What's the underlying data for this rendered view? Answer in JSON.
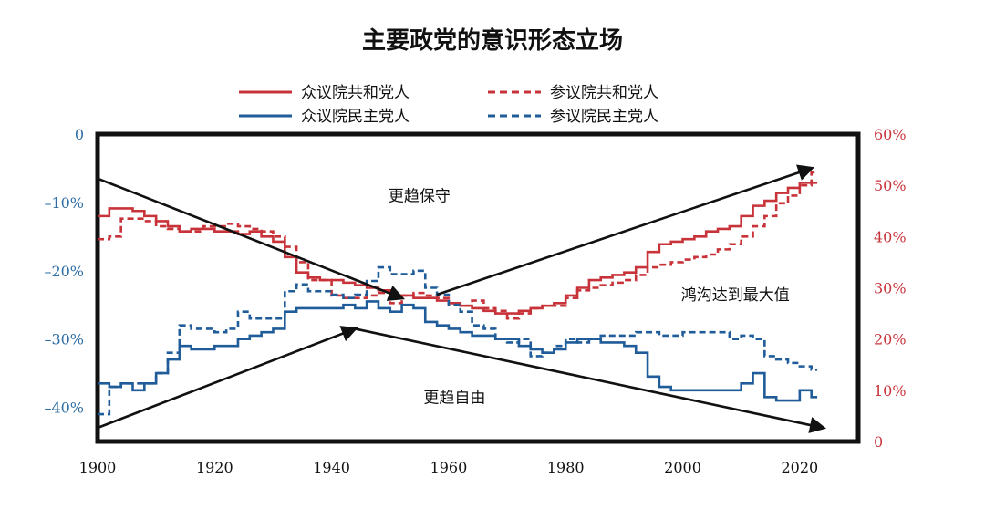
{
  "chart_data": {
    "type": "line",
    "title": "主要政党的意识形态立场",
    "x_ticks": [
      1900,
      1920,
      1940,
      1960,
      1980,
      2000,
      2020
    ],
    "left_axis": {
      "ticks": [
        "0",
        "–10%",
        "–20%",
        "–30%",
        "–40%"
      ],
      "values": [
        0,
        -10,
        -20,
        -30,
        -40
      ],
      "range": [
        -45,
        0
      ]
    },
    "right_axis": {
      "ticks": [
        "60%",
        "50%",
        "40%",
        "30%",
        "20%",
        "10%",
        "0"
      ],
      "values": [
        60,
        50,
        40,
        30,
        20,
        10,
        0
      ],
      "range": [
        0,
        60
      ]
    },
    "legend": {
      "placement": "top-center"
    },
    "colors": {
      "republican": "#c8333a",
      "democrat": "#1f5c99",
      "arrow": "#111111"
    },
    "series": [
      {
        "name": "众议院共和党人",
        "axis": "right",
        "style": "solid",
        "color": "#c8333a",
        "x": [
          1900,
          1902,
          1904,
          1906,
          1908,
          1910,
          1912,
          1914,
          1916,
          1918,
          1920,
          1922,
          1924,
          1926,
          1928,
          1930,
          1932,
          1934,
          1936,
          1938,
          1940,
          1942,
          1944,
          1946,
          1948,
          1950,
          1952,
          1954,
          1956,
          1958,
          1960,
          1962,
          1964,
          1966,
          1968,
          1970,
          1972,
          1974,
          1976,
          1978,
          1980,
          1982,
          1984,
          1986,
          1988,
          1990,
          1992,
          1994,
          1996,
          1998,
          2000,
          2002,
          2004,
          2006,
          2008,
          2010,
          2012,
          2014,
          2016,
          2018,
          2020,
          2022
        ],
        "y": [
          44,
          45.5,
          45.5,
          45,
          44,
          43,
          42,
          41,
          41.5,
          41.5,
          41,
          41,
          40.5,
          41,
          40,
          39,
          36,
          33,
          32,
          31.5,
          31.5,
          31,
          30.5,
          30,
          29.5,
          28.5,
          28.5,
          28,
          28,
          27.5,
          27,
          26.5,
          26,
          25.5,
          25,
          25,
          25.5,
          26,
          26.5,
          27,
          28.5,
          30,
          31.5,
          32,
          32.5,
          33,
          34,
          37,
          38.5,
          39,
          39.5,
          40,
          41,
          41.5,
          42,
          44,
          46,
          47,
          48.5,
          49.5,
          50.5,
          50.5
        ]
      },
      {
        "name": "参议院共和党人",
        "axis": "right",
        "style": "dashed",
        "color": "#c8333a",
        "x": [
          1900,
          1902,
          1904,
          1906,
          1908,
          1910,
          1912,
          1914,
          1916,
          1918,
          1920,
          1922,
          1924,
          1926,
          1928,
          1930,
          1932,
          1934,
          1936,
          1938,
          1940,
          1942,
          1944,
          1946,
          1948,
          1950,
          1952,
          1954,
          1956,
          1958,
          1960,
          1962,
          1964,
          1966,
          1968,
          1970,
          1972,
          1974,
          1976,
          1978,
          1980,
          1982,
          1984,
          1986,
          1988,
          1990,
          1992,
          1994,
          1996,
          1998,
          2000,
          2002,
          2004,
          2006,
          2008,
          2010,
          2012,
          2014,
          2016,
          2018,
          2020,
          2022
        ],
        "y": [
          39.5,
          40,
          43.5,
          43.5,
          43,
          42,
          41.5,
          41,
          41,
          42,
          42,
          42.5,
          42,
          41.5,
          41,
          40,
          38,
          35,
          31.5,
          31.5,
          28.5,
          28,
          28,
          28.5,
          29,
          27,
          28.5,
          29,
          28.5,
          28,
          27,
          26.5,
          27.5,
          26,
          25.5,
          24,
          25,
          26,
          26.5,
          26.5,
          28,
          29.5,
          30,
          30.5,
          31,
          31.5,
          32.5,
          34,
          34.5,
          35,
          35.5,
          36,
          36.5,
          37.5,
          38.5,
          40,
          42,
          44,
          46.5,
          48,
          50,
          52.5
        ]
      },
      {
        "name": "众议院民主党人",
        "axis": "left",
        "style": "solid",
        "color": "#1f5c99",
        "x": [
          1900,
          1902,
          1904,
          1906,
          1908,
          1910,
          1912,
          1914,
          1916,
          1918,
          1920,
          1922,
          1924,
          1926,
          1928,
          1930,
          1932,
          1934,
          1936,
          1938,
          1940,
          1942,
          1944,
          1946,
          1948,
          1950,
          1952,
          1954,
          1956,
          1958,
          1960,
          1962,
          1964,
          1966,
          1968,
          1970,
          1972,
          1974,
          1976,
          1978,
          1980,
          1982,
          1984,
          1986,
          1988,
          1990,
          1992,
          1994,
          1996,
          1998,
          2000,
          2002,
          2004,
          2006,
          2008,
          2010,
          2012,
          2014,
          2016,
          2018,
          2020,
          2022
        ],
        "y": [
          -36.5,
          -37,
          -36.5,
          -37.5,
          -36.5,
          -35,
          -33,
          -31,
          -31.5,
          -31.5,
          -31,
          -31,
          -30,
          -29.5,
          -29,
          -28.5,
          -26,
          -25.5,
          -25.5,
          -25.5,
          -25.5,
          -25,
          -25.5,
          -24.5,
          -25.5,
          -26,
          -25,
          -25.5,
          -27.5,
          -28,
          -28.5,
          -29,
          -29.5,
          -29.5,
          -30,
          -30,
          -31,
          -31.5,
          -32,
          -31.5,
          -30.5,
          -30,
          -30,
          -30.5,
          -30.5,
          -31,
          -32,
          -35.5,
          -37,
          -37.5,
          -37.5,
          -37.5,
          -37.5,
          -37.5,
          -37.5,
          -36.5,
          -35,
          -38.5,
          -39,
          -39,
          -37.5,
          -38.5
        ]
      },
      {
        "name": "参议院民主党人",
        "axis": "left",
        "style": "dashed",
        "color": "#1f5c99",
        "x": [
          1900,
          1902,
          1904,
          1906,
          1908,
          1910,
          1912,
          1914,
          1916,
          1918,
          1920,
          1922,
          1924,
          1926,
          1928,
          1930,
          1932,
          1934,
          1936,
          1938,
          1940,
          1942,
          1944,
          1946,
          1948,
          1950,
          1952,
          1954,
          1956,
          1958,
          1960,
          1962,
          1964,
          1966,
          1968,
          1970,
          1972,
          1974,
          1976,
          1978,
          1980,
          1982,
          1984,
          1986,
          1988,
          1990,
          1992,
          1994,
          1996,
          1998,
          2000,
          2002,
          2004,
          2006,
          2008,
          2010,
          2012,
          2014,
          2016,
          2018,
          2020,
          2022
        ],
        "y": [
          -41,
          -37,
          -36.5,
          -36.5,
          -36.5,
          -35,
          -32,
          -28,
          -28.5,
          -28.5,
          -29,
          -28.5,
          -26,
          -27,
          -27,
          -27,
          -23,
          -22,
          -23,
          -23,
          -23.5,
          -24,
          -23.5,
          -21.5,
          -19.5,
          -20.5,
          -20.5,
          -20,
          -22.5,
          -23.5,
          -25,
          -26,
          -28,
          -28.5,
          -30,
          -30.5,
          -30,
          -32.5,
          -32,
          -31,
          -30,
          -30.5,
          -30,
          -29.5,
          -29.5,
          -29.5,
          -29,
          -29,
          -29.5,
          -29.5,
          -29,
          -29,
          -29,
          -29,
          -30,
          -29.5,
          -30,
          -32.5,
          -33,
          -33.5,
          -34,
          -34.5
        ]
      }
    ],
    "annotations": [
      {
        "text": "更趋保守",
        "x": 1955,
        "y_left": -9
      },
      {
        "text": "更趋自由",
        "x": 1961,
        "y_left": -38.5
      },
      {
        "text": "鸿沟达到最大值",
        "x": 2009,
        "y_left": -23.5
      }
    ],
    "arrows": [
      {
        "from": [
          1900,
          -6.5
        ],
        "to": [
          1952,
          -24
        ],
        "axis": "left"
      },
      {
        "from": [
          1900,
          -43
        ],
        "to": [
          1944,
          -28.5
        ],
        "axis": "left"
      },
      {
        "from": [
          1944,
          -28.5
        ],
        "to": [
          2024,
          -43
        ],
        "axis": "left"
      },
      {
        "from": [
          1958,
          -23.5
        ],
        "to": [
          2022,
          -5
        ],
        "axis": "left"
      }
    ]
  }
}
